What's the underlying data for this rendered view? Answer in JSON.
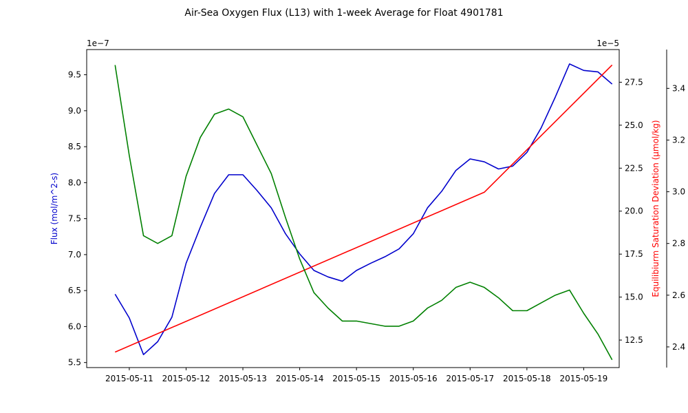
{
  "chart_data": {
    "type": "line",
    "title": "Air-Sea Oxygen Flux (L13) with 1-week Average for Float 4901781",
    "x_tick_labels": [
      "2015-05-11",
      "2015-05-12",
      "2015-05-13",
      "2015-05-14",
      "2015-05-15",
      "2015-05-16",
      "2015-05-17",
      "2015-05-18",
      "2015-05-19"
    ],
    "x_range": [
      "2015-05-10 06:00",
      "2015-05-19 15:00"
    ],
    "axes": {
      "left": {
        "label": "Flux (mol/m^2-s)",
        "color": "#0000cc",
        "offset_label": "1e−7",
        "ticks": [
          "5.5",
          "6.0",
          "6.5",
          "7.0",
          "7.5",
          "8.0",
          "8.5",
          "9.0",
          "9.5"
        ],
        "ylim": [
          5.43,
          9.85
        ]
      },
      "right": {
        "label": "Equilibiurm Saturation Deviation (µmol/kg)",
        "color": "#ff0000",
        "offset_label": "1e−5",
        "ticks": [
          "12.5",
          "15.0",
          "17.5",
          "20.0",
          "22.5",
          "25.0",
          "27.5"
        ],
        "ylim": [
          10.9,
          29.4
        ]
      },
      "right2": {
        "label": "",
        "ticks": [
          "2.4",
          "2.6",
          "2.8",
          "3.0",
          "3.2",
          "3.4"
        ],
        "ylim": [
          2.32,
          3.55
        ]
      }
    },
    "grid": false,
    "series": [
      {
        "axis": "left",
        "color": "#0000cc",
        "x": [
          "2015-05-10 18:00",
          "2015-05-11 00:00",
          "2015-05-11 06:00",
          "2015-05-11 12:00",
          "2015-05-11 18:00",
          "2015-05-12 00:00",
          "2015-05-12 06:00",
          "2015-05-12 12:00",
          "2015-05-12 18:00",
          "2015-05-13 00:00",
          "2015-05-13 06:00",
          "2015-05-13 12:00",
          "2015-05-13 18:00",
          "2015-05-14 00:00",
          "2015-05-14 06:00",
          "2015-05-14 12:00",
          "2015-05-14 18:00",
          "2015-05-15 00:00",
          "2015-05-15 06:00",
          "2015-05-15 12:00",
          "2015-05-15 18:00",
          "2015-05-16 00:00",
          "2015-05-16 06:00",
          "2015-05-16 12:00",
          "2015-05-16 18:00",
          "2015-05-17 00:00",
          "2015-05-17 06:00",
          "2015-05-17 12:00",
          "2015-05-17 18:00",
          "2015-05-18 00:00",
          "2015-05-18 06:00",
          "2015-05-18 12:00",
          "2015-05-18 18:00",
          "2015-05-19 00:00",
          "2015-05-19 06:00",
          "2015-05-19 12:00"
        ],
        "values": [
          6.45,
          6.12,
          5.61,
          5.79,
          6.13,
          6.88,
          7.38,
          7.85,
          8.11,
          8.11,
          7.89,
          7.65,
          7.29,
          7.01,
          6.78,
          6.69,
          6.63,
          6.78,
          6.88,
          6.97,
          7.08,
          7.29,
          7.65,
          7.88,
          8.17,
          8.33,
          8.29,
          8.19,
          8.23,
          8.42,
          8.76,
          9.19,
          9.65,
          9.56,
          9.54,
          9.37
        ]
      },
      {
        "axis": "right",
        "color": "#ff0000",
        "x": [
          "2015-05-10 18:00",
          "2015-05-17 06:00",
          "2015-05-19 12:00"
        ],
        "values": [
          11.8,
          21.1,
          28.5
        ]
      },
      {
        "axis": "right2",
        "color": "#008000",
        "x": [
          "2015-05-10 18:00",
          "2015-05-11 00:00",
          "2015-05-11 06:00",
          "2015-05-11 12:00",
          "2015-05-11 18:00",
          "2015-05-12 00:00",
          "2015-05-12 06:00",
          "2015-05-12 12:00",
          "2015-05-12 18:00",
          "2015-05-13 00:00",
          "2015-05-13 06:00",
          "2015-05-13 12:00",
          "2015-05-13 18:00",
          "2015-05-14 00:00",
          "2015-05-14 06:00",
          "2015-05-14 12:00",
          "2015-05-14 18:00",
          "2015-05-15 00:00",
          "2015-05-15 06:00",
          "2015-05-15 12:00",
          "2015-05-15 18:00",
          "2015-05-16 00:00",
          "2015-05-16 06:00",
          "2015-05-16 12:00",
          "2015-05-16 18:00",
          "2015-05-17 00:00",
          "2015-05-17 06:00",
          "2015-05-17 12:00",
          "2015-05-17 18:00",
          "2015-05-18 00:00",
          "2015-05-18 06:00",
          "2015-05-18 12:00",
          "2015-05-18 18:00",
          "2015-05-19 00:00",
          "2015-05-19 06:00",
          "2015-05-19 12:00"
        ],
        "values": [
          3.49,
          3.14,
          2.83,
          2.8,
          2.83,
          3.06,
          3.21,
          3.3,
          3.32,
          3.29,
          3.18,
          3.07,
          2.9,
          2.74,
          2.61,
          2.55,
          2.5,
          2.5,
          2.49,
          2.48,
          2.48,
          2.5,
          2.55,
          2.58,
          2.63,
          2.65,
          2.63,
          2.59,
          2.54,
          2.54,
          2.57,
          2.6,
          2.62,
          2.53,
          2.45,
          2.35
        ]
      }
    ]
  }
}
